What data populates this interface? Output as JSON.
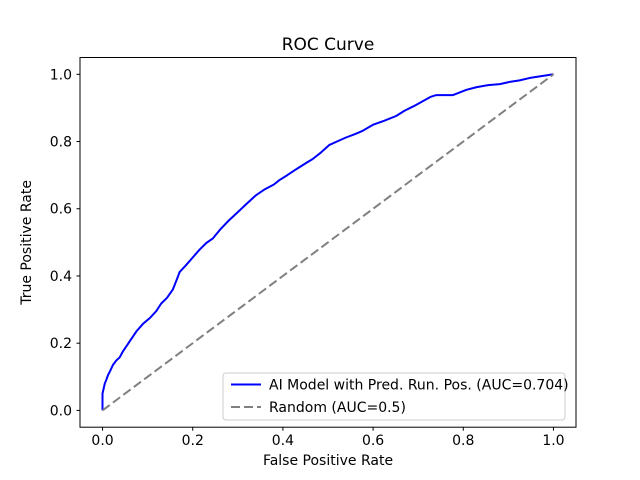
{
  "figure": {
    "background_color": "#ffffff",
    "frame_color": "#000000"
  },
  "chart_data": {
    "type": "line",
    "title": "ROC Curve",
    "xlabel": "False Positive Rate",
    "ylabel": "True Positive Rate",
    "xlim": [
      -0.05,
      1.05
    ],
    "ylim": [
      -0.05,
      1.05
    ],
    "grid": false,
    "xticks": {
      "values": [
        0.0,
        0.2,
        0.4,
        0.6,
        0.8,
        1.0
      ],
      "labels": [
        "0.0",
        "0.2",
        "0.4",
        "0.6",
        "0.8",
        "1.0"
      ]
    },
    "yticks": {
      "values": [
        0.0,
        0.2,
        0.4,
        0.6,
        0.8,
        1.0
      ],
      "labels": [
        "0.0",
        "0.2",
        "0.4",
        "0.6",
        "0.8",
        "1.0"
      ]
    },
    "legend": {
      "position": "lower right",
      "border_color": "#cccccc",
      "background": "#ffffff"
    },
    "series": [
      {
        "name": "AI Model with Pred. Run. Pos. (AUC=0.704)",
        "color": "#0000ff",
        "style": "solid",
        "auc": 0.704,
        "x": [
          0.0,
          0.0,
          0.002,
          0.005,
          0.008,
          0.012,
          0.016,
          0.023,
          0.03,
          0.038,
          0.045,
          0.055,
          0.065,
          0.075,
          0.09,
          0.105,
          0.119,
          0.13,
          0.143,
          0.156,
          0.165,
          0.171,
          0.185,
          0.2,
          0.215,
          0.23,
          0.245,
          0.262,
          0.28,
          0.3,
          0.319,
          0.34,
          0.36,
          0.38,
          0.392,
          0.41,
          0.43,
          0.45,
          0.466,
          0.485,
          0.503,
          0.52,
          0.54,
          0.56,
          0.577,
          0.6,
          0.625,
          0.651,
          0.67,
          0.69,
          0.71,
          0.728,
          0.74,
          0.777,
          0.79,
          0.807,
          0.83,
          0.855,
          0.881,
          0.905,
          0.925,
          0.95,
          0.975,
          1.0
        ],
        "y": [
          0.0,
          0.05,
          0.062,
          0.08,
          0.09,
          0.105,
          0.115,
          0.135,
          0.148,
          0.158,
          0.175,
          0.195,
          0.215,
          0.235,
          0.258,
          0.275,
          0.295,
          0.318,
          0.335,
          0.36,
          0.39,
          0.412,
          0.432,
          0.455,
          0.478,
          0.498,
          0.512,
          0.54,
          0.565,
          0.59,
          0.614,
          0.64,
          0.658,
          0.672,
          0.685,
          0.7,
          0.718,
          0.735,
          0.748,
          0.768,
          0.79,
          0.8,
          0.812,
          0.822,
          0.832,
          0.85,
          0.862,
          0.876,
          0.892,
          0.905,
          0.92,
          0.933,
          0.938,
          0.938,
          0.945,
          0.954,
          0.962,
          0.968,
          0.971,
          0.978,
          0.982,
          0.99,
          0.995,
          1.0
        ]
      },
      {
        "name": "Random (AUC=0.5)",
        "color": "#808080",
        "style": "dashed",
        "auc": 0.5,
        "x": [
          0.0,
          1.0
        ],
        "y": [
          0.0,
          1.0
        ]
      }
    ]
  }
}
